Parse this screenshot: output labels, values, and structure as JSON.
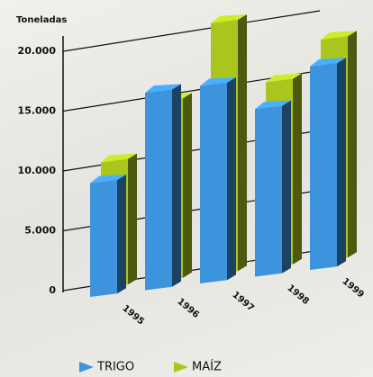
{
  "chart_data": {
    "type": "bar3d",
    "y_label": "Toneladas",
    "categories": [
      "1995",
      "1996",
      "1997",
      "1998",
      "1999"
    ],
    "series": [
      {
        "name": "TRIGO",
        "color": "#3d93dc",
        "values": [
          9500,
          16500,
          16500,
          14000,
          17000
        ]
      },
      {
        "name": "MAÍZ",
        "color": "#a9c61e",
        "values": [
          10500,
          15000,
          21000,
          15500,
          18500
        ]
      }
    ],
    "ylim": [
      0,
      20000
    ],
    "yticks": [
      0,
      {
        "value": 5000,
        "label": "5.000"
      },
      {
        "value": 10000,
        "label": "10.000"
      },
      {
        "value": 15000,
        "label": "15.000"
      },
      {
        "value": 20000,
        "label": "20.000"
      }
    ],
    "grid": true
  }
}
